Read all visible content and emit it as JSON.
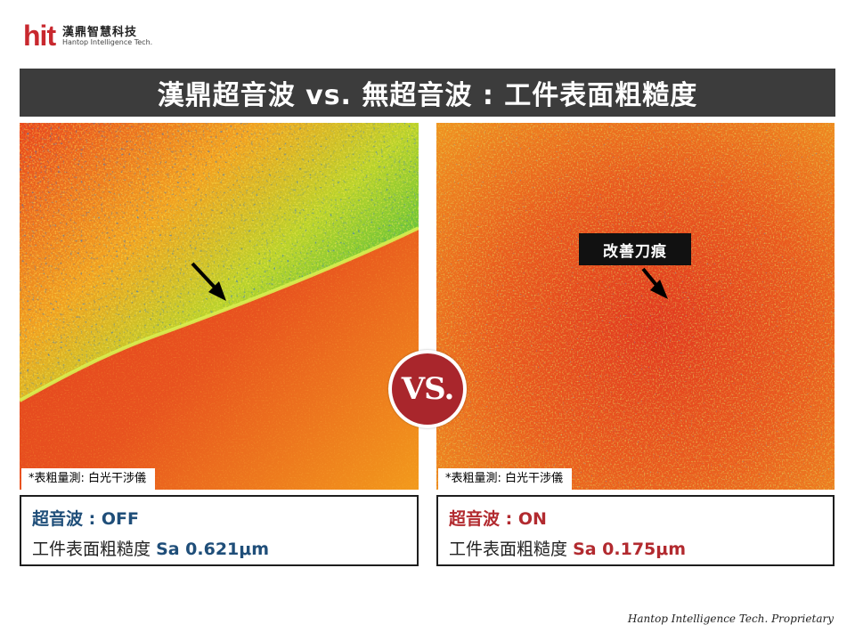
{
  "logo": {
    "mark": "hit",
    "cn": "漢鼎智慧科技",
    "en": "Hantop Intelligence Tech."
  },
  "title": "漢鼎超音波 vs. 無超音波 : 工件表面粗糙度",
  "panels": {
    "left": {
      "note": "*表粗量測: 白光干涉儀",
      "ultrasonic_label": "超音波",
      "ultrasonic_value": " : OFF",
      "roughness_label": "工件表面粗糙度",
      "roughness_value": "Sa 0.621μm"
    },
    "right": {
      "note": "*表粗量測: 白光干涉儀",
      "ultrasonic_label": "超音波",
      "ultrasonic_value": " : ON",
      "roughness_label": "工件表面粗糙度",
      "roughness_value": "Sa 0.175μm",
      "callout": "改善刀痕"
    }
  },
  "vs_badge": "VS.",
  "footer": "Hantop Intelligence Tech. Proprietary",
  "colors": {
    "title_bar": "#3c3c3c",
    "off_blue": "#1f4e79",
    "on_red": "#b22a2f",
    "badge_red": "#a9262c"
  }
}
